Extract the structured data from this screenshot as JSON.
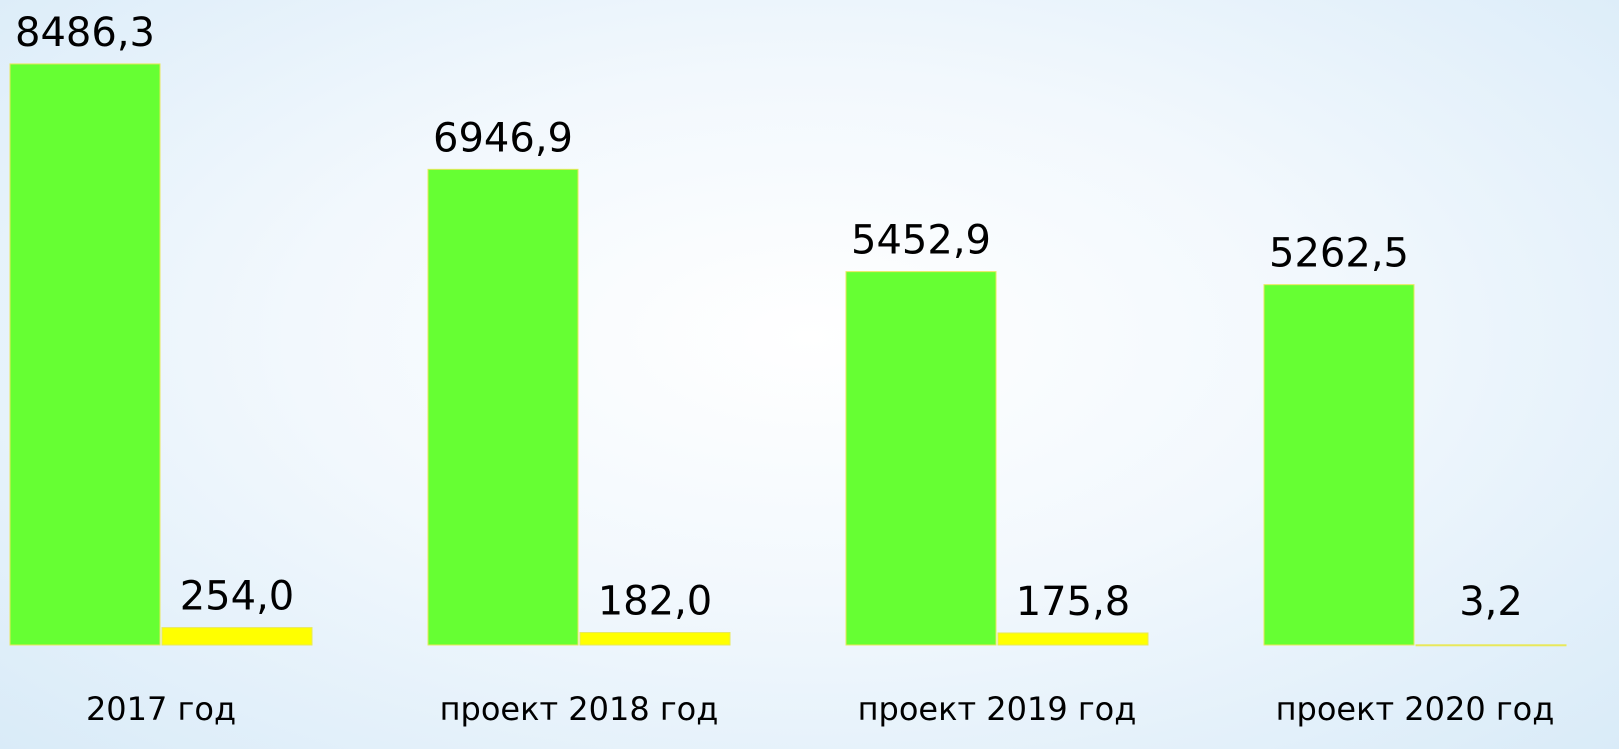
{
  "chart_data": {
    "type": "bar",
    "categories": [
      "2017 год",
      "проект 2018 год",
      "проект 2019 год",
      "проект 2020 год"
    ],
    "series": [
      {
        "color": "#66ff33",
        "values": [
          8486.3,
          6946.9,
          5452.9,
          5262.5
        ],
        "value_labels": [
          "8486,3",
          "6946,9",
          "5452,9",
          "5262,5"
        ]
      },
      {
        "color": "#ffff00",
        "values": [
          254.0,
          182.0,
          175.8,
          3.2
        ],
        "value_labels": [
          "254,0",
          "182,0",
          "175,8",
          "3,2"
        ]
      }
    ],
    "ylim": [
      0,
      9420
    ]
  }
}
